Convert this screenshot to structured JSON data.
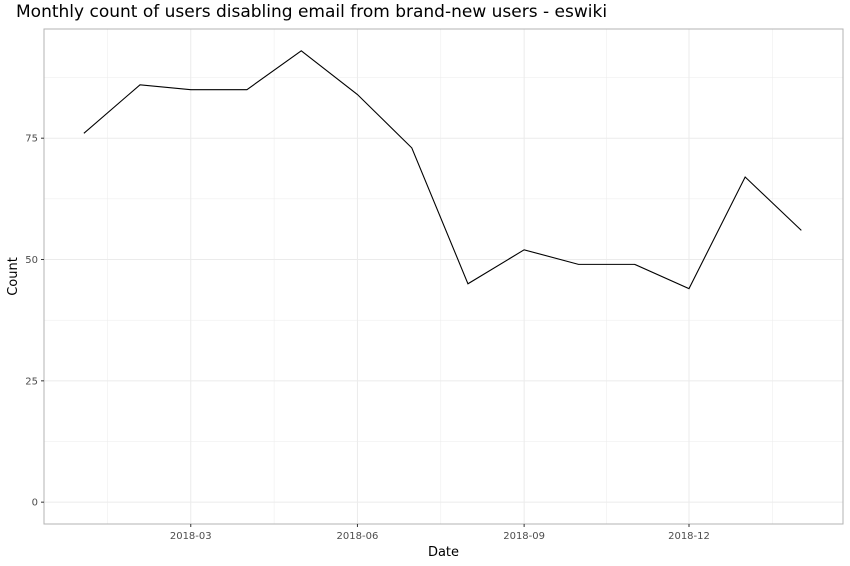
{
  "chart_data": {
    "type": "line",
    "title": "Monthly count of users disabling email from brand-new users - eswiki",
    "xlabel": "Date",
    "ylabel": "Count",
    "x": [
      "2018-01-01",
      "2018-02-01",
      "2018-03-01",
      "2018-04-01",
      "2018-05-01",
      "2018-06-01",
      "2018-07-01",
      "2018-08-01",
      "2018-09-01",
      "2018-10-01",
      "2018-11-01",
      "2018-12-01",
      "2019-01-01",
      "2019-02-01"
    ],
    "series": [
      {
        "values": [
          76,
          86,
          85,
          85,
          93,
          84,
          73,
          45,
          52,
          49,
          49,
          44,
          67,
          56
        ]
      }
    ],
    "xlim": [
      "2017-12-10",
      "2019-02-24"
    ],
    "ylim": [
      -4.5,
      97.5
    ],
    "x_ticks": [
      {
        "date": "2018-03-01",
        "label": "2018-03"
      },
      {
        "date": "2018-06-01",
        "label": "2018-06"
      },
      {
        "date": "2018-09-01",
        "label": "2018-09"
      },
      {
        "date": "2018-12-01",
        "label": "2018-12"
      }
    ],
    "y_ticks": [
      0,
      25,
      50,
      75
    ],
    "grid": true,
    "line_color": "#000000",
    "grid_color": "#ebebeb",
    "border_color": "#b3b3b3"
  }
}
